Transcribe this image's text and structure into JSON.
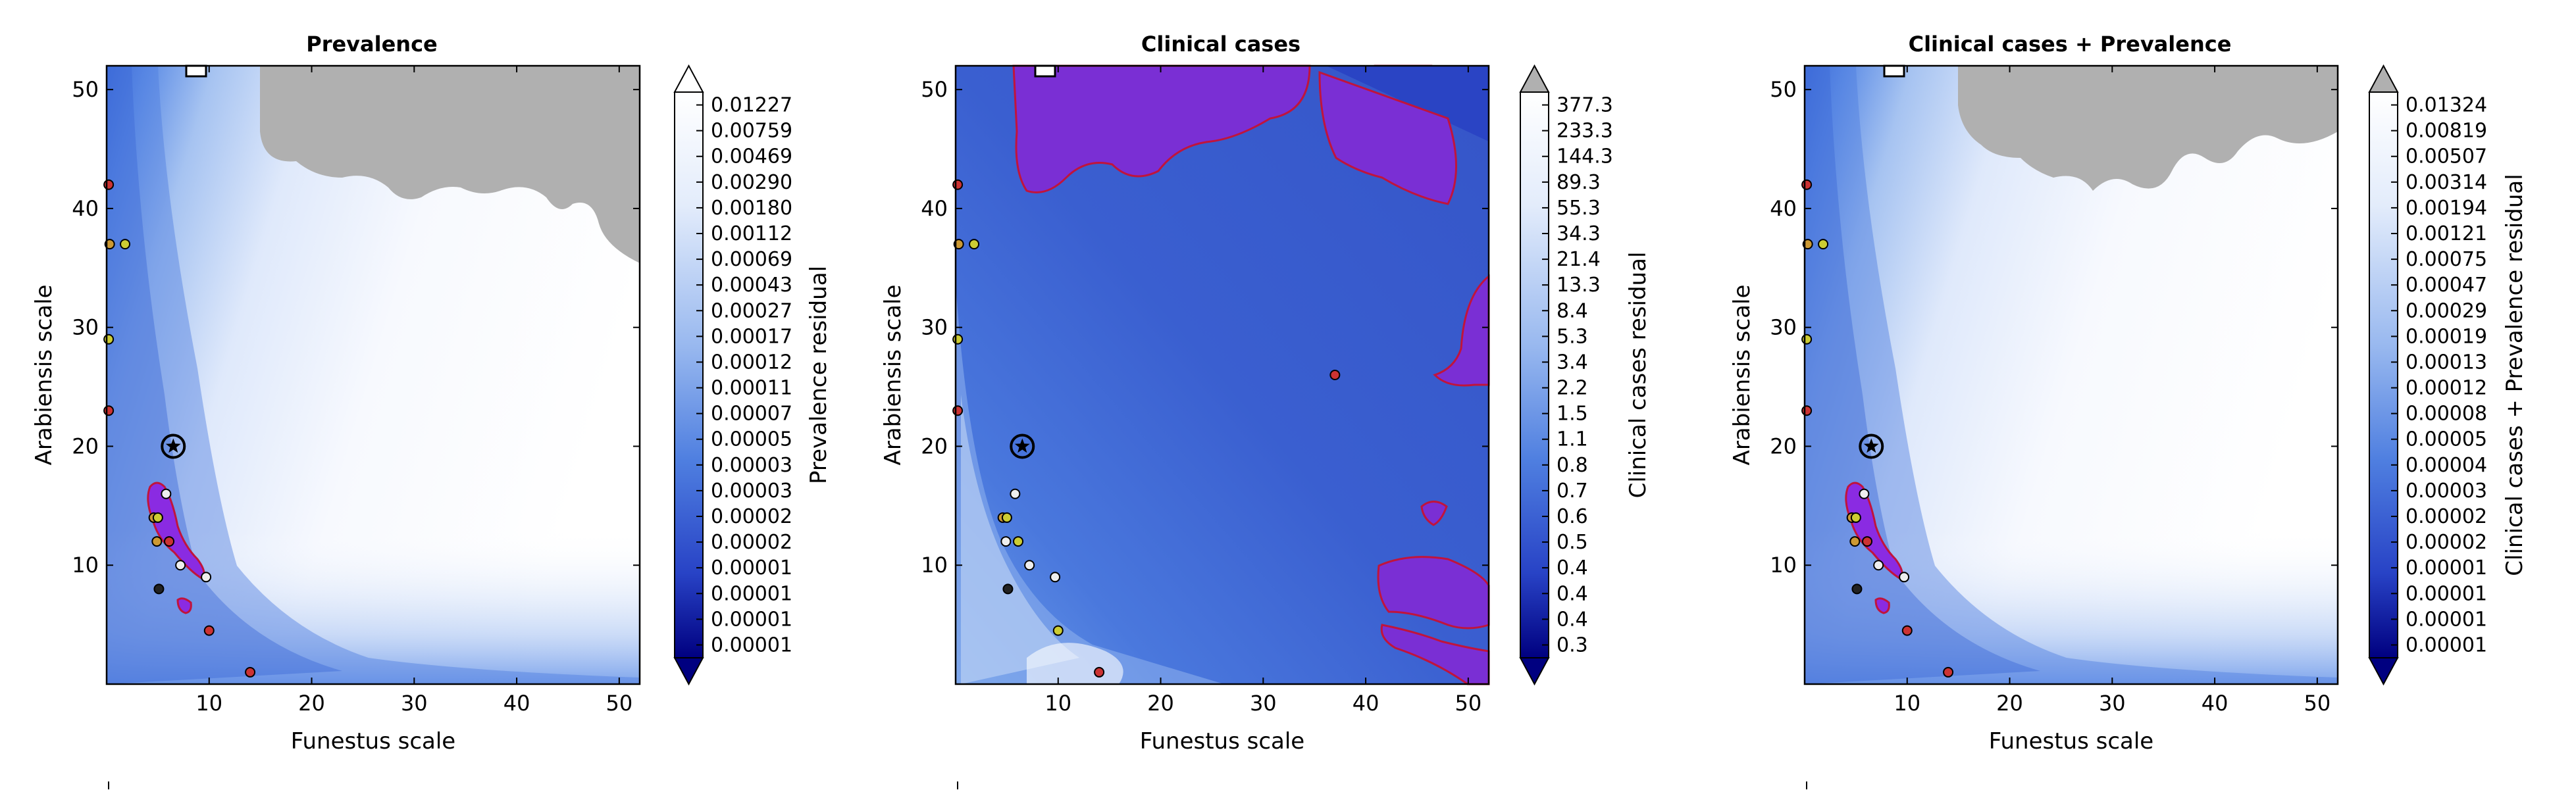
{
  "chart_data": [
    {
      "type": "heatmap",
      "title": "Prevalence",
      "xlabel": "Funestus scale",
      "ylabel": "Arabiensis scale",
      "xlim": [
        0,
        52
      ],
      "ylim": [
        0,
        52
      ],
      "xticks": [
        "10",
        "20",
        "30",
        "40",
        "50"
      ],
      "yticks": [
        "10",
        "20",
        "30",
        "40",
        "50"
      ],
      "colorbar_label": "Prevalence residual",
      "colorbar_ticks": [
        "0.01227",
        "0.00759",
        "0.00469",
        "0.00290",
        "0.00180",
        "0.00112",
        "0.00069",
        "0.00043",
        "0.00027",
        "0.00017",
        "0.00012",
        "0.00011",
        "0.00007",
        "0.00005",
        "0.00003",
        "0.00003",
        "0.00002",
        "0.00002",
        "0.00001",
        "0.00001",
        "0.00001",
        "0.00001"
      ],
      "star_marker": {
        "x": 6.5,
        "y": 20
      },
      "points": [
        {
          "x": 0.2,
          "y": 42,
          "c": "#cc3333"
        },
        {
          "x": 0.3,
          "y": 37,
          "c": "#cc9933"
        },
        {
          "x": 1.8,
          "y": 37,
          "c": "#cccc33"
        },
        {
          "x": 0.2,
          "y": 29,
          "c": "#cccc33"
        },
        {
          "x": 0.2,
          "y": 23,
          "c": "#cc3333"
        },
        {
          "x": 5.8,
          "y": 16,
          "c": "#eeeeee"
        },
        {
          "x": 4.6,
          "y": 14,
          "c": "#cc9933"
        },
        {
          "x": 5.0,
          "y": 14,
          "c": "#cccc33"
        },
        {
          "x": 4.9,
          "y": 12,
          "c": "#cc9933"
        },
        {
          "x": 6.1,
          "y": 12,
          "c": "#cc3333"
        },
        {
          "x": 7.2,
          "y": 10,
          "c": "#eeeeee"
        },
        {
          "x": 9.7,
          "y": 9,
          "c": "#eeeeee"
        },
        {
          "x": 5.1,
          "y": 8,
          "c": "#222222"
        },
        {
          "x": 10,
          "y": 4.5,
          "c": "#cc3333"
        },
        {
          "x": 14,
          "y": 1,
          "c": "#cc3333"
        }
      ]
    },
    {
      "type": "heatmap",
      "title": "Clinical cases",
      "xlabel": "Funestus scale",
      "ylabel": "Arabiensis scale",
      "xlim": [
        0,
        52
      ],
      "ylim": [
        0,
        52
      ],
      "xticks": [
        "10",
        "20",
        "30",
        "40",
        "50"
      ],
      "yticks": [
        "10",
        "20",
        "30",
        "40",
        "50"
      ],
      "colorbar_label": "Clinical cases residual",
      "colorbar_ticks": [
        "377.3",
        "233.3",
        "144.3",
        "89.3",
        "55.3",
        "34.3",
        "21.4",
        "13.3",
        "8.4",
        "5.3",
        "3.4",
        "2.2",
        "1.5",
        "1.1",
        "0.8",
        "0.7",
        "0.6",
        "0.5",
        "0.4",
        "0.4",
        "0.4",
        "0.3"
      ],
      "star_marker": {
        "x": 6.5,
        "y": 20
      },
      "points": [
        {
          "x": 0.2,
          "y": 42,
          "c": "#cc3333"
        },
        {
          "x": 0.3,
          "y": 37,
          "c": "#cc9933"
        },
        {
          "x": 1.8,
          "y": 37,
          "c": "#cccc33"
        },
        {
          "x": 0.2,
          "y": 29,
          "c": "#cccc33"
        },
        {
          "x": 0.2,
          "y": 23,
          "c": "#cc3333"
        },
        {
          "x": 5.8,
          "y": 16,
          "c": "#eeeeee"
        },
        {
          "x": 4.6,
          "y": 14,
          "c": "#cc9933"
        },
        {
          "x": 5.0,
          "y": 14,
          "c": "#cccc33"
        },
        {
          "x": 4.9,
          "y": 12,
          "c": "#eeeeee"
        },
        {
          "x": 6.1,
          "y": 12,
          "c": "#cccc33"
        },
        {
          "x": 7.2,
          "y": 10,
          "c": "#eeeeee"
        },
        {
          "x": 9.7,
          "y": 9,
          "c": "#eeeeee"
        },
        {
          "x": 5.1,
          "y": 8,
          "c": "#222222"
        },
        {
          "x": 10,
          "y": 4.5,
          "c": "#cccc33"
        },
        {
          "x": 14,
          "y": 1,
          "c": "#cc3333"
        },
        {
          "x": 37,
          "y": 26,
          "c": "#cc3333"
        }
      ]
    },
    {
      "type": "heatmap",
      "title": "Clinical cases + Prevalence",
      "xlabel": "Funestus scale",
      "ylabel": "Arabiensis scale",
      "xlim": [
        0,
        52
      ],
      "ylim": [
        0,
        52
      ],
      "xticks": [
        "10",
        "20",
        "30",
        "40",
        "50"
      ],
      "yticks": [
        "10",
        "20",
        "30",
        "40",
        "50"
      ],
      "colorbar_label": "Clinical cases + Prevalence residual",
      "colorbar_ticks": [
        "0.01324",
        "0.00819",
        "0.00507",
        "0.00314",
        "0.00194",
        "0.00121",
        "0.00075",
        "0.00047",
        "0.00029",
        "0.00019",
        "0.00013",
        "0.00012",
        "0.00008",
        "0.00005",
        "0.00004",
        "0.00003",
        "0.00002",
        "0.00002",
        "0.00001",
        "0.00001",
        "0.00001",
        "0.00001"
      ],
      "star_marker": {
        "x": 6.5,
        "y": 20
      },
      "points": [
        {
          "x": 0.2,
          "y": 42,
          "c": "#cc3333"
        },
        {
          "x": 0.3,
          "y": 37,
          "c": "#cc9933"
        },
        {
          "x": 1.8,
          "y": 37,
          "c": "#cccc33"
        },
        {
          "x": 0.2,
          "y": 29,
          "c": "#cccc33"
        },
        {
          "x": 0.2,
          "y": 23,
          "c": "#cc3333"
        },
        {
          "x": 5.8,
          "y": 16,
          "c": "#eeeeee"
        },
        {
          "x": 4.6,
          "y": 14,
          "c": "#cc9933"
        },
        {
          "x": 5.0,
          "y": 14,
          "c": "#cccc33"
        },
        {
          "x": 4.9,
          "y": 12,
          "c": "#cc9933"
        },
        {
          "x": 6.1,
          "y": 12,
          "c": "#cc3333"
        },
        {
          "x": 7.2,
          "y": 10,
          "c": "#eeeeee"
        },
        {
          "x": 9.7,
          "y": 9,
          "c": "#eeeeee"
        },
        {
          "x": 5.1,
          "y": 8,
          "c": "#222222"
        },
        {
          "x": 10,
          "y": 4.5,
          "c": "#cc3333"
        },
        {
          "x": 14,
          "y": 1,
          "c": "#cc3333"
        }
      ]
    }
  ],
  "colors": {
    "colormap": [
      "#000080",
      "#2a44c4",
      "#4a74dc",
      "#7fa2e8",
      "#b6ccf2",
      "#e6eefb",
      "#ffffff"
    ],
    "mask": "#b0b0b0",
    "contour_fill": "#8a2be2",
    "contour_edge": "#c0143c"
  }
}
